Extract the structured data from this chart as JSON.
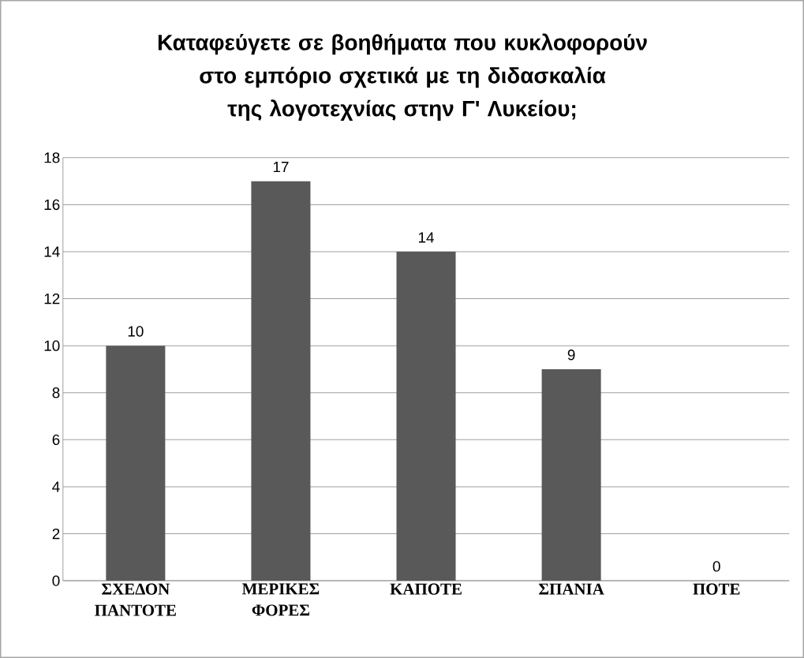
{
  "chart_data": {
    "type": "bar",
    "title": "Καταφεύγετε σε βοηθήματα που κυκλοφορούν στο εμπόριο σχετικά με τη διδασκαλία της λογοτεχνίας στην Γ' Λυκείου;",
    "categories": [
      "ΣΧΕΔΟΝ ΠΑΝΤΟΤΕ",
      "ΜΕΡΙΚΕΣ ΦΟΡΕΣ",
      "ΚΑΠΟΤΕ",
      "ΣΠΑΝΙΑ",
      "ΠΟΤΕ"
    ],
    "values": [
      10,
      17,
      14,
      9,
      0
    ],
    "color": "#595959",
    "ylim": [
      0,
      18
    ],
    "yticks": [
      0,
      2,
      4,
      6,
      8,
      10,
      12,
      14,
      16,
      18
    ],
    "grid": "y",
    "data_labels": true
  }
}
